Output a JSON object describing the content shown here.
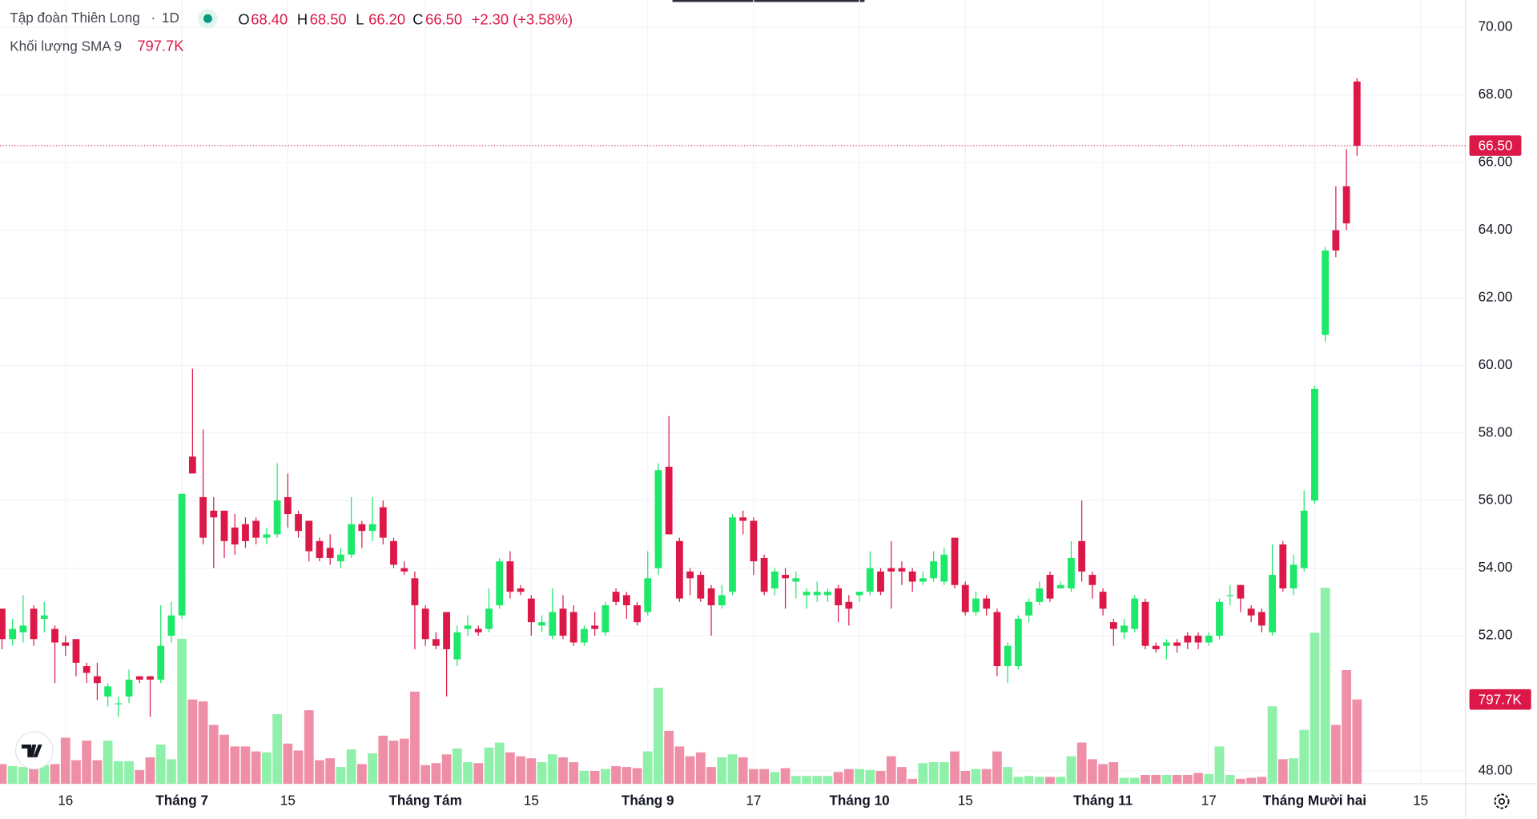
{
  "header": {
    "symbol": "Tập đoàn Thiên Long",
    "separator": "·",
    "interval": "1D",
    "ohlc": [
      {
        "key": "O",
        "text": "68.40"
      },
      {
        "key": "H",
        "text": "68.50"
      },
      {
        "key": "L",
        "text": "66.20"
      },
      {
        "key": "C",
        "text": "66.50"
      }
    ],
    "change": "+2.30 (+3.58%)",
    "volume_label": "Khối lượng SMA 9"
  },
  "chart_data": {
    "type": "candlestick",
    "categories": [
      null,
      null,
      null,
      null,
      null,
      null,
      "16",
      null,
      null,
      null,
      null,
      null,
      null,
      null,
      null,
      null,
      null,
      "Tháng 7",
      null,
      null,
      null,
      null,
      null,
      null,
      null,
      null,
      null,
      "15",
      null,
      null,
      null,
      null,
      null,
      null,
      null,
      null,
      null,
      null,
      null,
      null,
      "Tháng Tám",
      null,
      null,
      null,
      null,
      null,
      null,
      null,
      null,
      null,
      "15",
      null,
      null,
      null,
      null,
      null,
      null,
      null,
      null,
      null,
      null,
      "Tháng 9",
      null,
      null,
      null,
      null,
      null,
      null,
      null,
      null,
      null,
      "17",
      null,
      null,
      null,
      null,
      null,
      null,
      null,
      null,
      null,
      "Tháng 10",
      null,
      null,
      null,
      null,
      null,
      null,
      null,
      null,
      null,
      "15",
      null,
      null,
      null,
      null,
      null,
      null,
      null,
      null,
      null,
      null,
      null,
      null,
      "Tháng 11",
      null,
      null,
      null,
      null,
      null,
      null,
      null,
      null,
      null,
      "17",
      null,
      null,
      null,
      null,
      null,
      null,
      null,
      null,
      null,
      "Tháng Mười hai",
      null,
      null,
      null,
      null,
      null,
      null,
      null,
      null,
      null,
      "15",
      null,
      null,
      null
    ],
    "open": [
      52.8,
      51.9,
      52.1,
      52.8,
      52.5,
      52.2,
      51.8,
      51.9,
      51.1,
      50.8,
      50.2,
      50.0,
      50.2,
      50.8,
      50.8,
      50.7,
      52.0,
      52.6,
      57.3,
      56.1,
      55.7,
      55.7,
      55.2,
      55.3,
      55.4,
      54.9,
      55.0,
      56.1,
      55.6,
      55.4,
      54.8,
      54.6,
      54.2,
      54.4,
      55.3,
      55.1,
      55.8,
      54.8,
      54.0,
      53.7,
      52.8,
      51.9,
      52.7,
      51.3,
      52.2,
      52.2,
      52.2,
      52.9,
      54.2,
      53.4,
      53.1,
      52.3,
      52.0,
      52.8,
      52.7,
      51.8,
      52.3,
      52.1,
      53.3,
      53.2,
      52.9,
      52.7,
      54.0,
      57.0,
      54.8,
      53.9,
      53.8,
      53.4,
      52.9,
      53.3,
      55.5,
      55.4,
      54.3,
      53.4,
      53.8,
      53.6,
      53.2,
      53.2,
      53.2,
      53.4,
      53.0,
      53.2,
      53.3,
      53.9,
      54.0,
      54.0,
      53.9,
      53.6,
      53.7,
      53.6,
      54.9,
      53.5,
      52.7,
      53.1,
      52.7,
      51.1,
      51.1,
      52.6,
      53.0,
      53.8,
      53.4,
      53.4,
      54.8,
      53.8,
      53.3,
      52.4,
      52.1,
      52.2,
      53.0,
      51.7,
      51.7,
      51.8,
      52.0,
      52.0,
      51.8,
      52.0,
      53.2,
      53.5,
      52.8,
      52.7,
      52.1,
      54.7,
      53.4,
      54.0,
      56.0,
      60.9,
      64.0,
      65.3,
      68.4,
      null,
      null,
      null,
      null,
      null,
      null,
      null,
      null,
      null
    ],
    "high": [
      52.8,
      52.5,
      53.2,
      52.9,
      53.0,
      52.3,
      52.0,
      51.9,
      51.2,
      51.2,
      50.6,
      50.2,
      51.0,
      50.8,
      50.8,
      52.9,
      53.0,
      56.2,
      59.9,
      58.1,
      56.1,
      55.7,
      55.6,
      55.5,
      55.5,
      55.2,
      57.1,
      56.8,
      55.7,
      55.4,
      54.9,
      55.0,
      54.6,
      56.1,
      55.4,
      56.1,
      56.0,
      54.9,
      54.2,
      53.9,
      52.9,
      52.1,
      52.7,
      52.3,
      52.6,
      52.3,
      53.4,
      54.3,
      54.5,
      53.5,
      53.2,
      52.6,
      53.4,
      53.2,
      52.9,
      52.3,
      52.7,
      53.0,
      53.4,
      53.3,
      53.0,
      54.5,
      57.1,
      58.5,
      54.9,
      54.0,
      53.9,
      53.5,
      53.5,
      55.6,
      55.7,
      55.5,
      54.4,
      54.0,
      54.0,
      53.9,
      53.4,
      53.6,
      53.4,
      53.5,
      53.2,
      53.3,
      54.5,
      54.0,
      54.8,
      54.2,
      54.0,
      53.9,
      54.5,
      54.6,
      54.9,
      53.6,
      53.3,
      53.2,
      52.8,
      51.8,
      52.6,
      53.1,
      53.6,
      53.9,
      53.6,
      54.8,
      56.0,
      53.9,
      53.4,
      52.5,
      52.5,
      53.2,
      53.1,
      51.8,
      51.9,
      51.9,
      52.1,
      52.1,
      52.1,
      53.1,
      53.5,
      53.5,
      52.9,
      52.8,
      54.7,
      54.8,
      54.4,
      56.3,
      59.4,
      63.5,
      65.3,
      66.4,
      68.5,
      null,
      null,
      null,
      null,
      null,
      null,
      null,
      null,
      null
    ],
    "low": [
      51.6,
      51.7,
      51.8,
      51.7,
      52.1,
      50.6,
      51.4,
      50.8,
      50.6,
      50.1,
      49.9,
      49.6,
      50.0,
      50.6,
      49.6,
      50.6,
      51.8,
      52.5,
      56.8,
      54.7,
      54.0,
      54.3,
      54.4,
      54.6,
      54.7,
      54.7,
      54.9,
      55.2,
      54.9,
      54.2,
      54.2,
      54.1,
      54.0,
      54.3,
      54.6,
      54.8,
      54.7,
      54.0,
      53.8,
      51.6,
      51.7,
      51.6,
      50.2,
      51.1,
      52.0,
      52.0,
      52.1,
      52.8,
      53.1,
      53.2,
      52.0,
      52.1,
      51.9,
      51.9,
      51.7,
      51.7,
      52.0,
      52.0,
      52.9,
      52.5,
      52.3,
      52.6,
      53.8,
      55.0,
      53.0,
      53.2,
      53.0,
      52.0,
      52.8,
      53.2,
      55.0,
      53.8,
      53.2,
      53.2,
      52.8,
      53.1,
      52.8,
      53.0,
      53.0,
      52.4,
      52.3,
      53.0,
      53.2,
      53.2,
      52.8,
      53.5,
      53.3,
      53.5,
      53.6,
      53.5,
      53.4,
      52.6,
      52.6,
      52.6,
      50.8,
      50.6,
      51.0,
      52.4,
      52.9,
      53.0,
      53.4,
      53.3,
      53.6,
      53.1,
      52.6,
      51.7,
      51.9,
      52.1,
      51.6,
      51.5,
      51.3,
      51.5,
      51.6,
      51.6,
      51.7,
      51.9,
      52.9,
      52.7,
      52.4,
      52.1,
      52.0,
      53.3,
      53.2,
      53.9,
      55.9,
      60.7,
      63.2,
      64.0,
      66.2,
      null,
      null,
      null,
      null,
      null,
      null,
      null,
      null,
      null
    ],
    "close": [
      51.9,
      52.2,
      52.3,
      51.9,
      52.6,
      51.8,
      51.7,
      51.2,
      50.9,
      50.6,
      50.5,
      50.0,
      50.7,
      50.7,
      50.7,
      51.7,
      52.6,
      56.2,
      56.8,
      54.9,
      55.5,
      54.8,
      54.7,
      54.8,
      54.9,
      55.0,
      56.0,
      55.6,
      55.1,
      54.5,
      54.3,
      54.3,
      54.4,
      55.3,
      55.1,
      55.3,
      54.9,
      54.1,
      53.9,
      52.9,
      51.9,
      51.7,
      51.6,
      52.1,
      52.3,
      52.1,
      52.8,
      54.2,
      53.3,
      53.3,
      52.4,
      52.4,
      52.7,
      52.0,
      51.8,
      52.2,
      52.2,
      52.9,
      53.0,
      52.9,
      52.4,
      53.7,
      56.9,
      55.0,
      53.1,
      53.7,
      53.1,
      52.9,
      53.2,
      55.5,
      55.4,
      54.2,
      53.3,
      53.9,
      53.7,
      53.7,
      53.3,
      53.3,
      53.3,
      52.9,
      52.8,
      53.3,
      54.0,
      53.3,
      53.9,
      53.9,
      53.6,
      53.7,
      54.2,
      54.4,
      53.5,
      52.7,
      53.1,
      52.8,
      51.1,
      51.7,
      52.5,
      53.0,
      53.4,
      53.1,
      53.5,
      54.3,
      53.9,
      53.5,
      52.8,
      52.2,
      52.3,
      53.1,
      51.7,
      51.6,
      51.8,
      51.7,
      51.8,
      51.8,
      52.0,
      53.0,
      53.2,
      53.1,
      52.6,
      52.3,
      53.8,
      53.4,
      54.1,
      55.7,
      59.3,
      63.4,
      63.4,
      64.2,
      66.5,
      null,
      null,
      null,
      null,
      null,
      null,
      null,
      null,
      null
    ],
    "volume": [
      186000,
      167000,
      158000,
      204000,
      176000,
      186000,
      436000,
      223000,
      408000,
      223000,
      408000,
      213000,
      213000,
      130000,
      250000,
      371000,
      232000,
      1373000,
      798000,
      779000,
      557000,
      464000,
      353000,
      353000,
      306000,
      297000,
      659000,
      380000,
      315000,
      696000,
      223000,
      241000,
      158000,
      325000,
      186000,
      288000,
      455000,
      408000,
      427000,
      872000,
      176000,
      195000,
      278000,
      334000,
      204000,
      195000,
      343000,
      390000,
      297000,
      260000,
      241000,
      204000,
      278000,
      250000,
      204000,
      121000,
      121000,
      139000,
      167000,
      158000,
      148000,
      306000,
      909000,
      501000,
      353000,
      260000,
      297000,
      158000,
      250000,
      278000,
      250000,
      139000,
      139000,
      111000,
      148000,
      74000,
      74000,
      74000,
      74000,
      111000,
      139000,
      139000,
      130000,
      121000,
      260000,
      158000,
      46000,
      195000,
      204000,
      204000,
      306000,
      121000,
      139000,
      139000,
      306000,
      158000,
      65000,
      74000,
      65000,
      65000,
      65000,
      260000,
      390000,
      232000,
      186000,
      204000,
      56000,
      56000,
      83000,
      83000,
      83000,
      83000,
      83000,
      102000,
      93000,
      353000,
      83000,
      46000,
      56000,
      65000,
      733000,
      232000,
      241000,
      510000,
      1429000,
      1855000,
      557000,
      1076000,
      798000,
      null,
      null,
      null,
      null,
      null,
      null,
      null,
      null,
      null
    ],
    "ylim": [
      47.62,
      70.81
    ],
    "yticks": [
      {
        "value": 48,
        "label": "48.00"
      },
      {
        "value": 52,
        "label": "52.00"
      },
      {
        "value": 54,
        "label": "54.00"
      },
      {
        "value": 56,
        "label": "56.00"
      },
      {
        "value": 58,
        "label": "58.00"
      },
      {
        "value": 60,
        "label": "60.00"
      },
      {
        "value": 62,
        "label": "62.00"
      },
      {
        "value": 64,
        "label": "64.00"
      },
      {
        "value": 66,
        "label": "66.00"
      },
      {
        "value": 68,
        "label": "68.00"
      },
      {
        "value": 70,
        "label": "70.00"
      }
    ],
    "last_price": {
      "value": 66.5,
      "label": "66.50"
    },
    "volume_sma": {
      "value": 797700,
      "label": "797.7K"
    },
    "grid": true,
    "up_color": "#1ee86a",
    "down_color": "#dc1848",
    "volume_up_color": "#8ff0a9",
    "volume_down_color": "#ee8fa7"
  }
}
